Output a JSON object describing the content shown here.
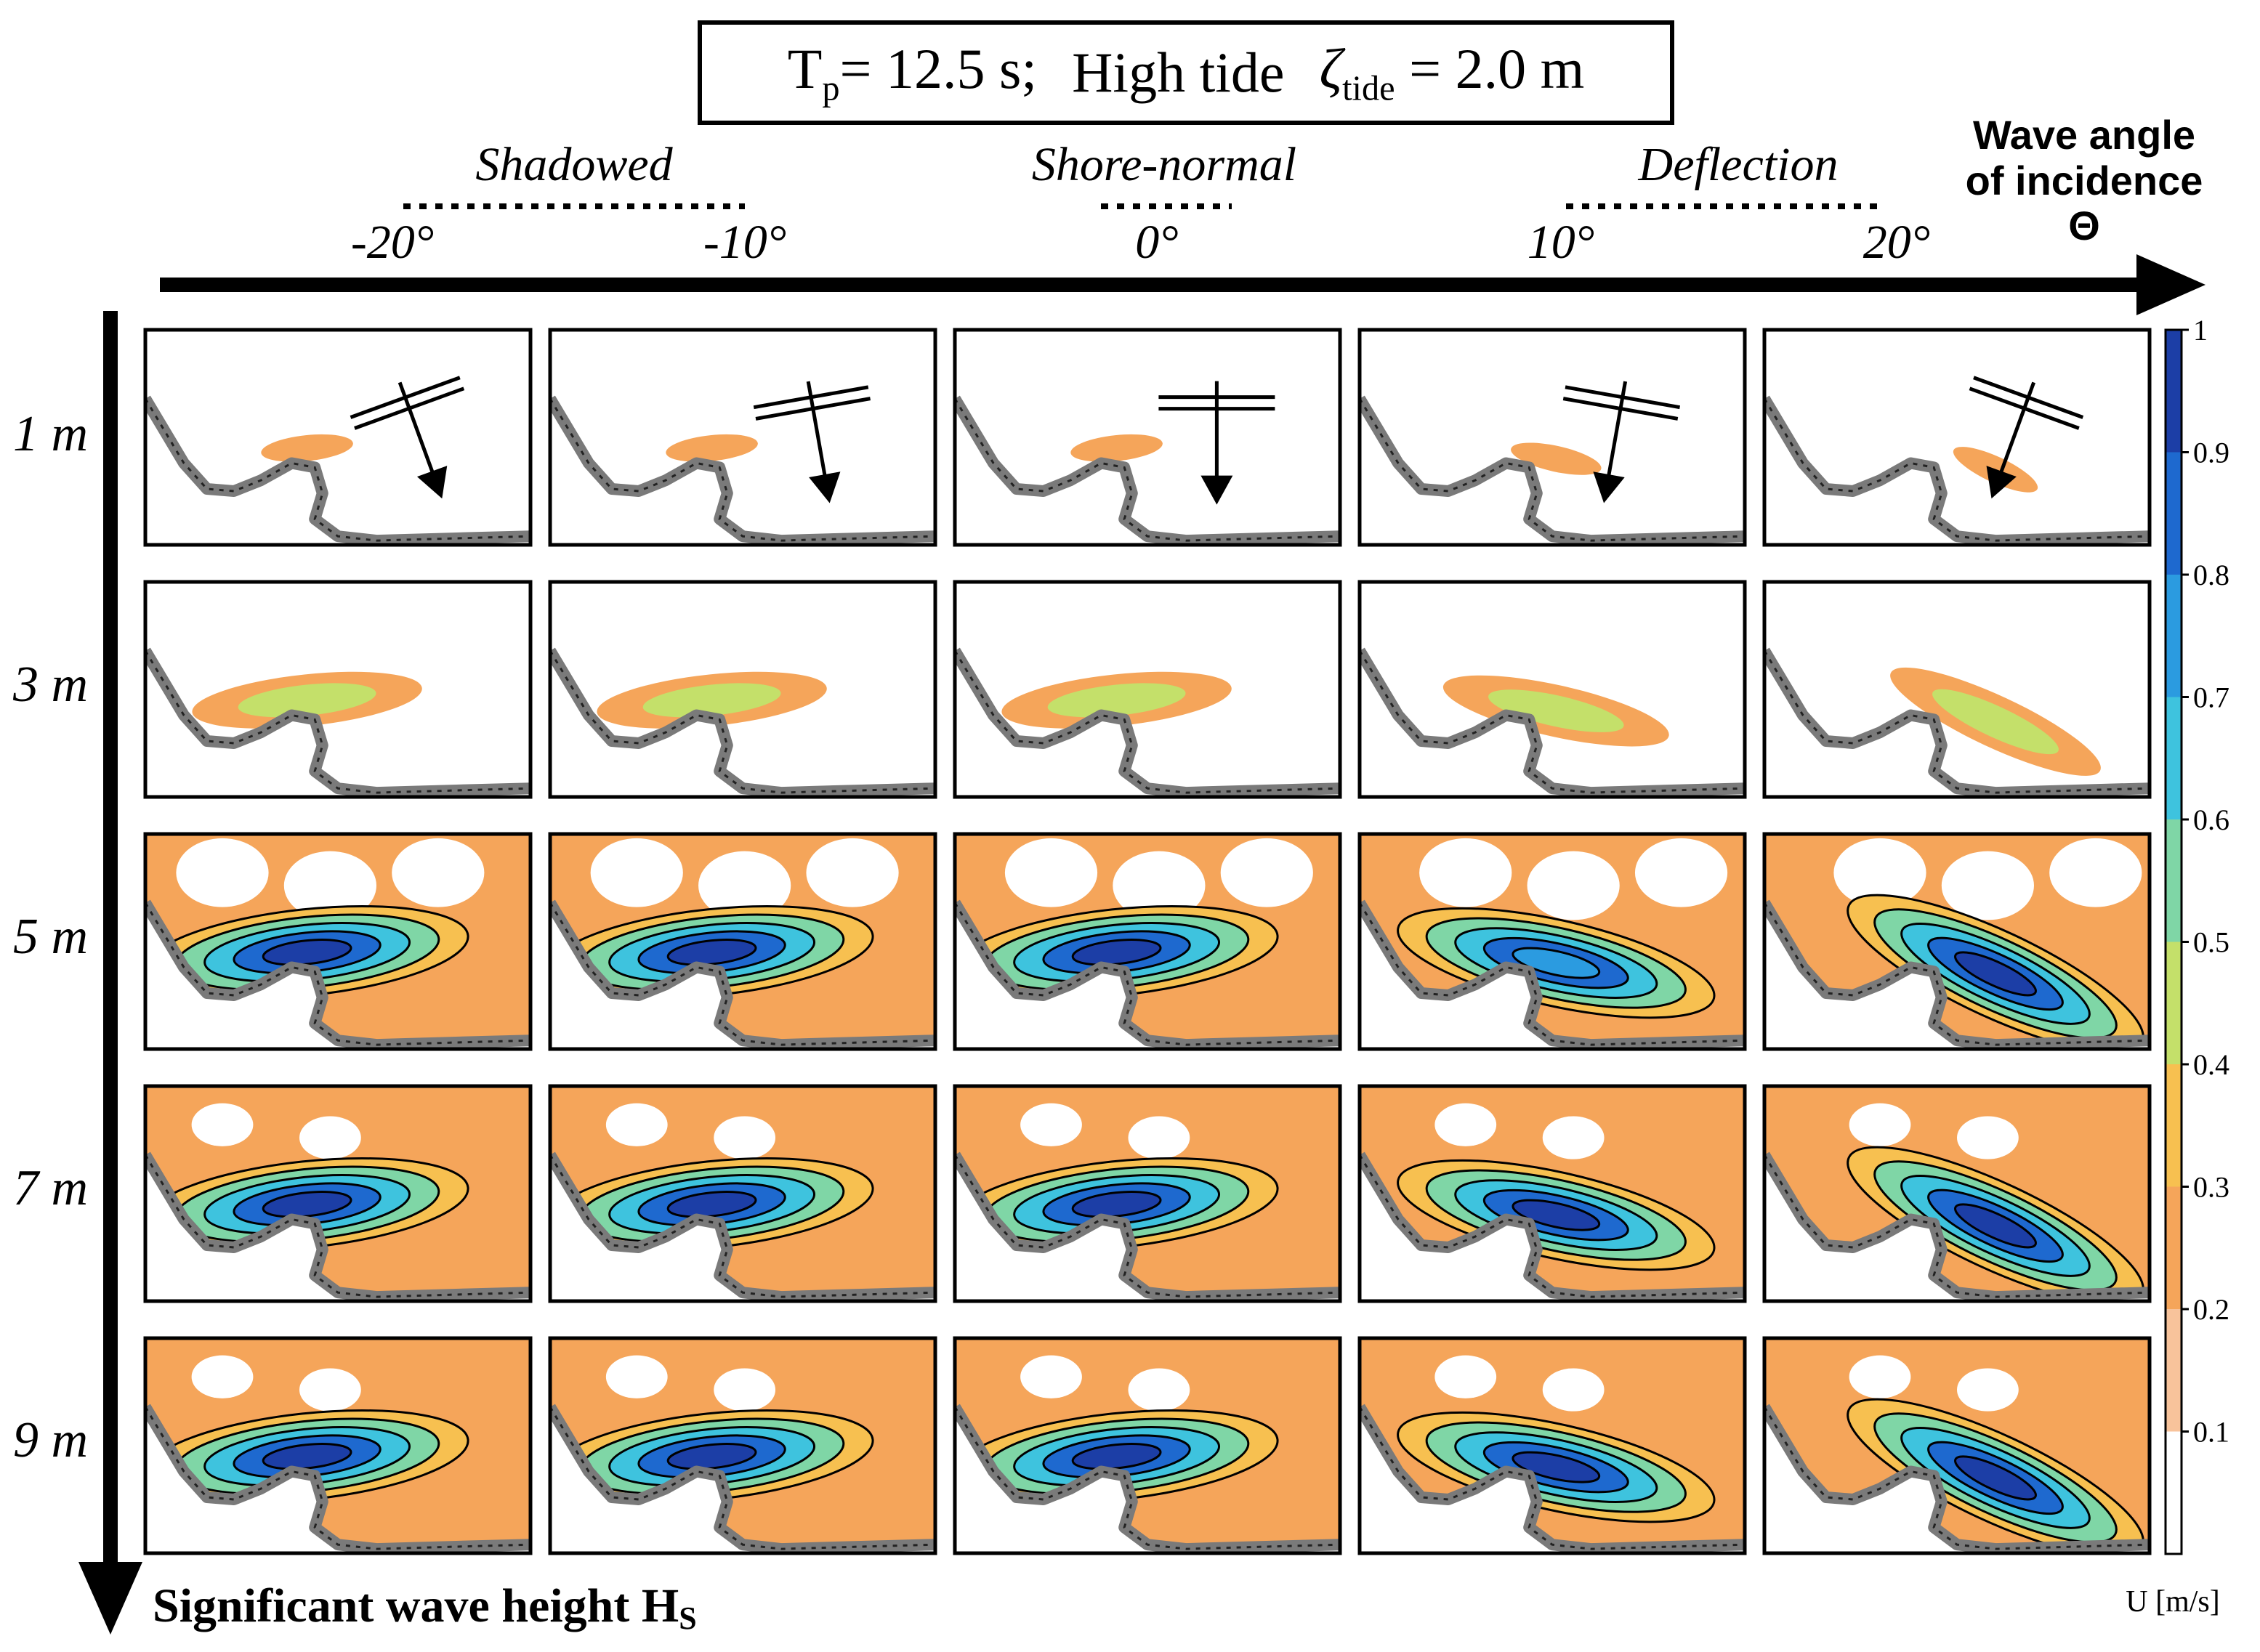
{
  "title": {
    "tp_label": "T",
    "tp_sub": "p",
    "tp_value": "= 12.5 s;",
    "tide_label": "High tide",
    "zeta_symbol": "ζ",
    "zeta_sub": "tide",
    "zeta_value": "= 2.0 m"
  },
  "angle_axis": {
    "label_line1": "Wave angle",
    "label_line2": "of incidence",
    "label_symbol": "Θ",
    "groups": [
      {
        "name": "Shadowed"
      },
      {
        "name": "Shore-normal"
      },
      {
        "name": "Deflection"
      }
    ],
    "ticks": [
      "-20°",
      "-10°",
      "0°",
      "10°",
      "20°"
    ]
  },
  "height_axis": {
    "label": "Significant wave height H",
    "label_sub": "S",
    "ticks": [
      "1 m",
      "3 m",
      "5 m",
      "7 m",
      "9 m"
    ]
  },
  "colorbar": {
    "label": "U [m/s]",
    "ticks": [
      "1",
      "0.9",
      "0.8",
      "0.7",
      "0.6",
      "0.5",
      "0.4",
      "0.3",
      "0.2",
      "0.1"
    ],
    "colors": [
      "#ffffff",
      "#f8c39b",
      "#f5a55a",
      "#f7c050",
      "#c4e06a",
      "#7fd6a6",
      "#3ec3de",
      "#2b9be0",
      "#1e69cf",
      "#1c3ea6"
    ]
  },
  "chart_data": {
    "type": "heatmap",
    "variable": "U [m/s]",
    "x": [
      "-20°",
      "-10°",
      "0°",
      "10°",
      "20°"
    ],
    "y": [
      "1 m",
      "3 m",
      "5 m",
      "7 m",
      "9 m"
    ],
    "vlim": [
      0,
      1
    ],
    "approx_peak_speed": [
      [
        0.25,
        0.25,
        0.25,
        0.25,
        0.25
      ],
      [
        0.55,
        0.6,
        0.55,
        0.5,
        0.55
      ],
      [
        0.95,
        0.95,
        0.95,
        0.7,
        0.9
      ],
      [
        1.0,
        1.0,
        1.0,
        0.9,
        0.95
      ],
      [
        1.0,
        1.0,
        1.0,
        0.95,
        1.0
      ]
    ]
  }
}
